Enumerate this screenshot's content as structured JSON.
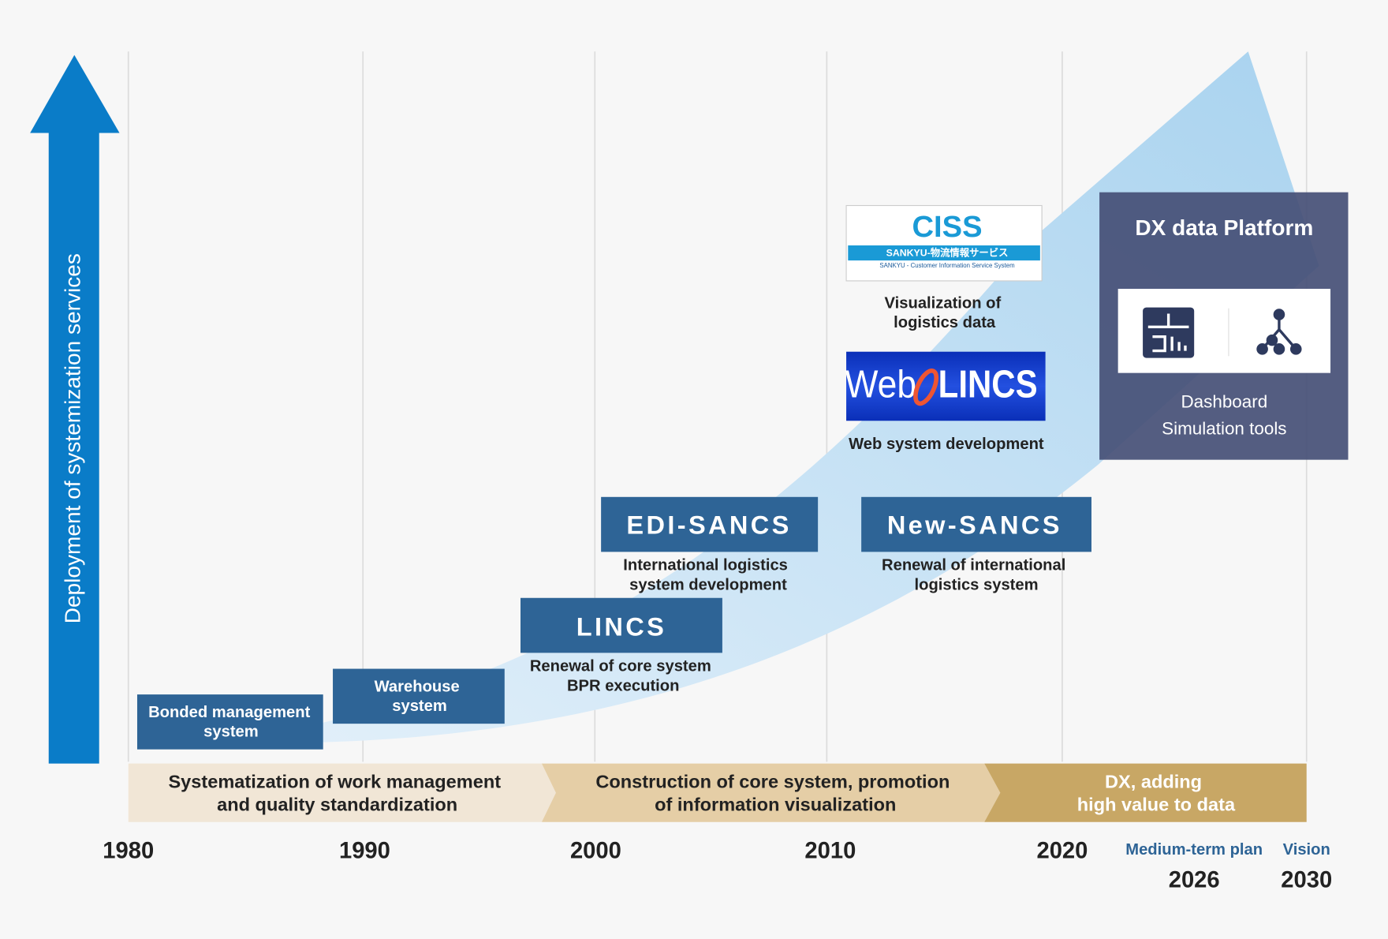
{
  "axis_label": "Deployment of systemization services",
  "timeline": {
    "years": [
      1980,
      1990,
      2000,
      2010,
      2020
    ],
    "plan": {
      "label": "Medium-term plan",
      "year": 2026
    },
    "vision": {
      "label": "Vision",
      "year": 2030
    }
  },
  "phases": [
    {
      "lines": [
        "Systematization of work management",
        "and quality standardization"
      ]
    },
    {
      "lines": [
        "Construction of core system, promotion",
        "of information visualization"
      ]
    },
    {
      "lines": [
        "DX, adding",
        "high value to data"
      ]
    }
  ],
  "systems": [
    {
      "title_lines": [
        "Bonded management",
        "system"
      ]
    },
    {
      "title_lines": [
        "Warehouse",
        "system"
      ]
    },
    {
      "title": "LINCS",
      "description": [
        "Renewal of core system",
        "BPR execution"
      ]
    },
    {
      "title": "EDI-SANCS",
      "description": [
        "International logistics",
        "system development"
      ]
    },
    {
      "title": "New-SANCS",
      "description": [
        "Renewal of international",
        "logistics system"
      ]
    },
    {
      "logo": [
        "CISS",
        "SANKYU-物流情報サービス",
        "SANKYU - Customer Information Service System"
      ],
      "description": [
        "Visualization of",
        "logistics data"
      ]
    },
    {
      "logo": [
        "Web",
        "LINCS"
      ],
      "description": [
        "Web system development"
      ]
    }
  ],
  "dx_platform": {
    "title": "DX data Platform",
    "items": [
      "Dashboard",
      "Simulation tools"
    ]
  }
}
